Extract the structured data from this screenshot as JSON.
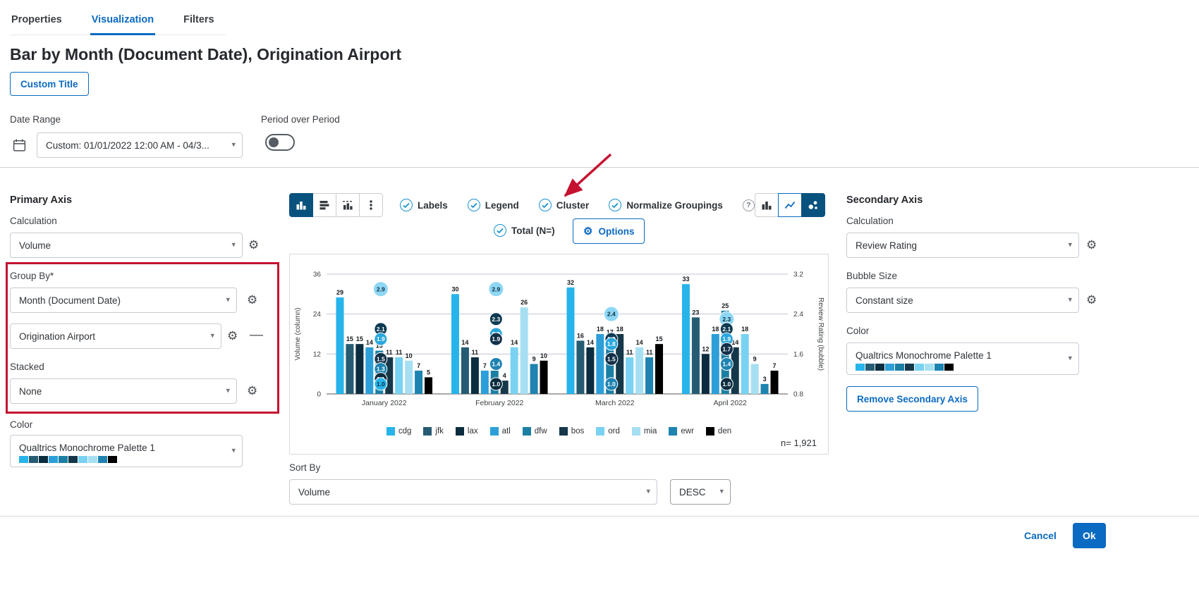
{
  "icons": {
    "gear": "⚙",
    "chevron": "▾",
    "minus": "—",
    "help": "?"
  },
  "colors": {
    "accent": "#0b6ac1",
    "selected_button": "#0a527e",
    "annotation_red": "#c41230",
    "palette": [
      "#27b4ea",
      "#265c73",
      "#0c2d3f",
      "#2d9fd8",
      "#1b7fa4",
      "#15374a",
      "#79d2f2",
      "#a6dff2",
      "#1e83b0",
      "#000000"
    ],
    "bubble_palette": [
      "#8ed7f4",
      "#0d3a52",
      "#2aa7dd",
      "#123048",
      "#1e83b0",
      "#0c2d3f",
      "#27b4ea"
    ]
  },
  "tabs": {
    "items": [
      {
        "label": "Properties",
        "active": false
      },
      {
        "label": "Visualization",
        "active": true
      },
      {
        "label": "Filters",
        "active": false
      }
    ]
  },
  "header": {
    "title": "Bar by Month (Document Date), Origination Airport",
    "custom_title_button": "Custom Title"
  },
  "date_range": {
    "label": "Date Range",
    "value": "Custom: 01/01/2022 12:00 AM - 04/3..."
  },
  "period_over_period": {
    "label": "Period over Period",
    "enabled": false
  },
  "primary_axis": {
    "heading": "Primary Axis",
    "calculation_label": "Calculation",
    "calculation_value": "Volume",
    "group_by_label": "Group By*",
    "group_by_values": [
      "Month (Document Date)",
      "Origination Airport"
    ],
    "stacked_label": "Stacked",
    "stacked_value": "None",
    "color_label": "Color",
    "color_value": "Qualtrics Monochrome Palette 1"
  },
  "toolbar": {
    "toggles": [
      {
        "label": "Labels",
        "checked": true
      },
      {
        "label": "Legend",
        "checked": true
      },
      {
        "label": "Cluster",
        "checked": true
      },
      {
        "label": "Normalize Groupings",
        "checked": true
      }
    ],
    "total_label": "Total (N=)",
    "total_checked": true,
    "options_label": "Options"
  },
  "secondary_axis": {
    "heading": "Secondary Axis",
    "calculation_label": "Calculation",
    "calculation_value": "Review Rating",
    "bubble_size_label": "Bubble Size",
    "bubble_size_value": "Constant size",
    "color_label": "Color",
    "color_value": "Qualtrics Monochrome Palette 1",
    "remove_button": "Remove Secondary Axis"
  },
  "sort_by": {
    "label": "Sort By",
    "value": "Volume",
    "direction": "DESC"
  },
  "footer": {
    "cancel_label": "Cancel",
    "ok_label": "Ok"
  },
  "chart_data": {
    "type": "bar",
    "subtype": "clustered-columns-with-rating-bubbles",
    "categories": [
      "January 2022",
      "February 2022",
      "March 2022",
      "April 2022"
    ],
    "series": [
      {
        "name": "cdg",
        "color": "#27b4ea",
        "values": [
          29,
          30,
          32,
          33
        ]
      },
      {
        "name": "jfk",
        "color": "#265c73",
        "values": [
          15,
          14,
          16,
          23
        ]
      },
      {
        "name": "lax",
        "color": "#0c2d3f",
        "values": [
          15,
          11,
          14,
          12
        ]
      },
      {
        "name": "atl",
        "color": "#2d9fd8",
        "values": [
          14,
          7,
          18,
          18
        ]
      },
      {
        "name": "dfw",
        "color": "#1b7fa4",
        "values": [
          13,
          7,
          17,
          25
        ]
      },
      {
        "name": "bos",
        "color": "#15374a",
        "values": [
          11,
          4,
          18,
          14
        ]
      },
      {
        "name": "ord",
        "color": "#79d2f2",
        "values": [
          11,
          14,
          11,
          18
        ]
      },
      {
        "name": "mia",
        "color": "#a6dff2",
        "values": [
          10,
          26,
          14,
          9
        ]
      },
      {
        "name": "ewr",
        "color": "#1e83b0",
        "values": [
          7,
          9,
          11,
          3
        ]
      },
      {
        "name": "den",
        "color": "#000000",
        "values": [
          5,
          10,
          15,
          7
        ]
      }
    ],
    "bubbles": [
      [
        2.9,
        2.1,
        1.9,
        1.5,
        1.3,
        1.1,
        1.0
      ],
      [
        2.9,
        2.3,
        2.0,
        1.9,
        1.4,
        1.0
      ],
      [
        2.4,
        1.9,
        1.8,
        1.5,
        1.0
      ],
      [
        2.3,
        2.1,
        1.9,
        1.7,
        1.4,
        1.0
      ]
    ],
    "left_axis": {
      "label": "Volume (column)",
      "ticks": [
        0,
        12,
        24,
        36
      ],
      "min": 0,
      "max": 36
    },
    "right_axis": {
      "label": "Review Rating (bubble)",
      "ticks": [
        0.8,
        1.6,
        2.4,
        3.2
      ],
      "min": 0.8,
      "max": 3.2
    },
    "legend_position": "bottom",
    "n_label": "n= 1,921"
  }
}
